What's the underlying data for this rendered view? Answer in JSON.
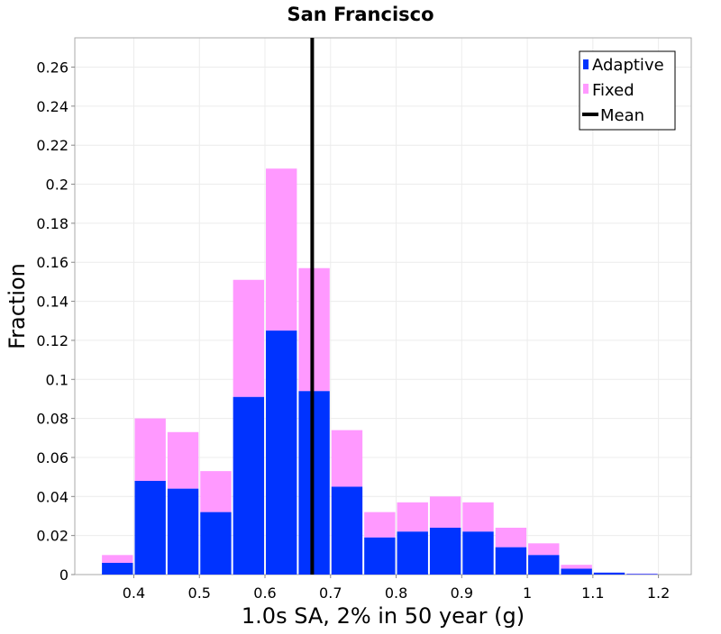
{
  "chart_data": {
    "type": "bar",
    "stacked": true,
    "title": "San Francisco",
    "xlabel": "1.0s SA, 2% in 50 year (g)",
    "ylabel": "Fraction",
    "xlim": [
      0.31,
      1.25
    ],
    "ylim": [
      0,
      0.275
    ],
    "bin_width": 0.05,
    "bin_centers": [
      0.375,
      0.425,
      0.475,
      0.525,
      0.575,
      0.625,
      0.675,
      0.725,
      0.775,
      0.825,
      0.875,
      0.925,
      0.975,
      1.025,
      1.075,
      1.125,
      1.175
    ],
    "series": [
      {
        "name": "Adaptive",
        "color": "#0033ff",
        "values": [
          0.006,
          0.048,
          0.044,
          0.032,
          0.091,
          0.125,
          0.094,
          0.045,
          0.019,
          0.022,
          0.024,
          0.022,
          0.014,
          0.01,
          0.003,
          0.001,
          0.0003
        ]
      },
      {
        "name": "Fixed",
        "color": "#ff99ff",
        "totals": [
          0.01,
          0.08,
          0.073,
          0.053,
          0.151,
          0.208,
          0.157,
          0.074,
          0.032,
          0.037,
          0.04,
          0.037,
          0.024,
          0.016,
          0.005,
          0.001,
          0.0005
        ]
      }
    ],
    "mean": {
      "name": "Mean",
      "value": 0.672,
      "color": "#000000"
    },
    "x_ticks": [
      "0.4",
      "0.5",
      "0.6",
      "0.7",
      "0.8",
      "0.9",
      "1",
      "1.1",
      "1.2"
    ],
    "x_tick_values": [
      0.4,
      0.5,
      0.6,
      0.7,
      0.8,
      0.9,
      1.0,
      1.1,
      1.2
    ],
    "y_ticks": [
      "0",
      "0.02",
      "0.04",
      "0.06",
      "0.08",
      "0.1",
      "0.12",
      "0.14",
      "0.16",
      "0.18",
      "0.2",
      "0.22",
      "0.24",
      "0.26"
    ],
    "y_tick_values": [
      0,
      0.02,
      0.04,
      0.06,
      0.08,
      0.1,
      0.12,
      0.14,
      0.16,
      0.18,
      0.2,
      0.22,
      0.24,
      0.26
    ],
    "grid": true,
    "legend": {
      "placement": "top-right",
      "entries": [
        "Adaptive",
        "Fixed",
        "Mean"
      ]
    }
  }
}
